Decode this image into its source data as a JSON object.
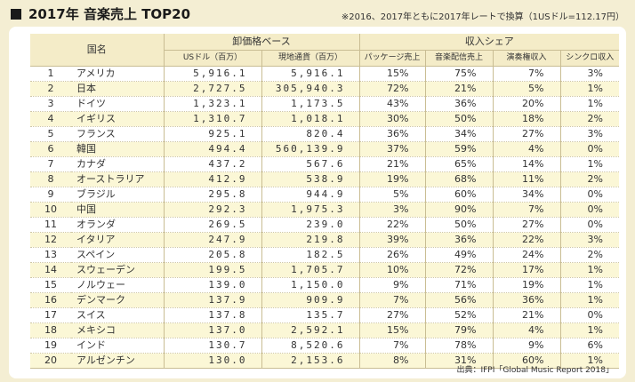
{
  "header": {
    "title": "2017年 音楽売上 TOP20",
    "note": "※2016、2017年ともに2017年レートで換算（1USドル=112.17円）"
  },
  "table": {
    "country_header": "国名",
    "wholesale_group": "卸価格ベース",
    "share_group": "収入シェア",
    "columns": [
      "USドル（百万）",
      "現地通貨（百万）",
      "パッケージ売上",
      "音楽配信売上",
      "演奏権収入",
      "シンクロ収入"
    ],
    "rows": [
      {
        "rank": "1",
        "country": "アメリカ",
        "usd": "5,916.1",
        "local": "5,916.1",
        "package": "15%",
        "digital": "75%",
        "performance": "7%",
        "sync": "3%"
      },
      {
        "rank": "2",
        "country": "日本",
        "usd": "2,727.5",
        "local": "305,940.3",
        "package": "72%",
        "digital": "21%",
        "performance": "5%",
        "sync": "1%"
      },
      {
        "rank": "3",
        "country": "ドイツ",
        "usd": "1,323.1",
        "local": "1,173.5",
        "package": "43%",
        "digital": "36%",
        "performance": "20%",
        "sync": "1%"
      },
      {
        "rank": "4",
        "country": "イギリス",
        "usd": "1,310.7",
        "local": "1,018.1",
        "package": "30%",
        "digital": "50%",
        "performance": "18%",
        "sync": "2%"
      },
      {
        "rank": "5",
        "country": "フランス",
        "usd": "925.1",
        "local": "820.4",
        "package": "36%",
        "digital": "34%",
        "performance": "27%",
        "sync": "3%"
      },
      {
        "rank": "6",
        "country": "韓国",
        "usd": "494.4",
        "local": "560,139.9",
        "package": "37%",
        "digital": "59%",
        "performance": "4%",
        "sync": "0%"
      },
      {
        "rank": "7",
        "country": "カナダ",
        "usd": "437.2",
        "local": "567.6",
        "package": "21%",
        "digital": "65%",
        "performance": "14%",
        "sync": "1%"
      },
      {
        "rank": "8",
        "country": "オーストラリア",
        "usd": "412.9",
        "local": "538.9",
        "package": "19%",
        "digital": "68%",
        "performance": "11%",
        "sync": "2%"
      },
      {
        "rank": "9",
        "country": "ブラジル",
        "usd": "295.8",
        "local": "944.9",
        "package": "5%",
        "digital": "60%",
        "performance": "34%",
        "sync": "0%"
      },
      {
        "rank": "10",
        "country": "中国",
        "usd": "292.3",
        "local": "1,975.3",
        "package": "3%",
        "digital": "90%",
        "performance": "7%",
        "sync": "0%"
      },
      {
        "rank": "11",
        "country": "オランダ",
        "usd": "269.5",
        "local": "239.0",
        "package": "22%",
        "digital": "50%",
        "performance": "27%",
        "sync": "0%"
      },
      {
        "rank": "12",
        "country": "イタリア",
        "usd": "247.9",
        "local": "219.8",
        "package": "39%",
        "digital": "36%",
        "performance": "22%",
        "sync": "3%"
      },
      {
        "rank": "13",
        "country": "スペイン",
        "usd": "205.8",
        "local": "182.5",
        "package": "26%",
        "digital": "49%",
        "performance": "24%",
        "sync": "2%"
      },
      {
        "rank": "14",
        "country": "スウェーデン",
        "usd": "199.5",
        "local": "1,705.7",
        "package": "10%",
        "digital": "72%",
        "performance": "17%",
        "sync": "1%"
      },
      {
        "rank": "15",
        "country": "ノルウェー",
        "usd": "139.0",
        "local": "1,150.0",
        "package": "9%",
        "digital": "71%",
        "performance": "19%",
        "sync": "1%"
      },
      {
        "rank": "16",
        "country": "デンマーク",
        "usd": "137.9",
        "local": "909.9",
        "package": "7%",
        "digital": "56%",
        "performance": "36%",
        "sync": "1%"
      },
      {
        "rank": "17",
        "country": "スイス",
        "usd": "137.8",
        "local": "135.7",
        "package": "27%",
        "digital": "52%",
        "performance": "21%",
        "sync": "0%"
      },
      {
        "rank": "18",
        "country": "メキシコ",
        "usd": "137.0",
        "local": "2,592.1",
        "package": "15%",
        "digital": "79%",
        "performance": "4%",
        "sync": "1%"
      },
      {
        "rank": "19",
        "country": "インド",
        "usd": "130.7",
        "local": "8,520.6",
        "package": "7%",
        "digital": "78%",
        "performance": "9%",
        "sync": "6%"
      },
      {
        "rank": "20",
        "country": "アルゼンチン",
        "usd": "130.0",
        "local": "2,153.6",
        "package": "8%",
        "digital": "31%",
        "performance": "60%",
        "sync": "1%"
      }
    ]
  },
  "source": "出典：IFPI「Global Music Report 2018」",
  "colors": {
    "background": "#f4eed3",
    "header_fill": "#f4ecc8",
    "highlight_row": "#fbf7d6",
    "rule": "#c9bd93"
  }
}
